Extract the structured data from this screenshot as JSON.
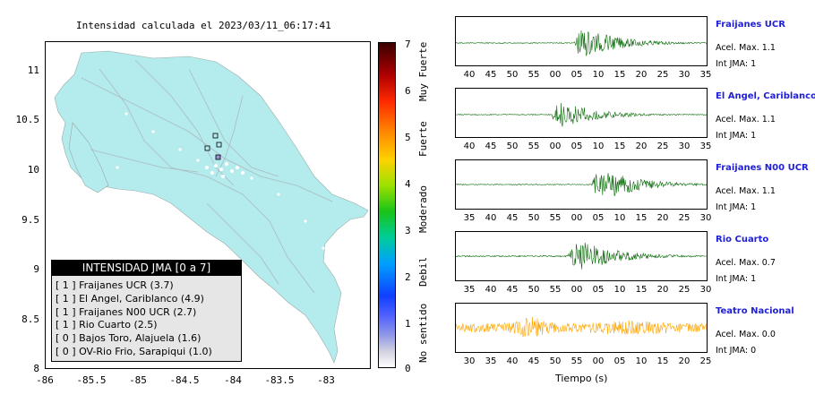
{
  "map": {
    "title": "Intensidad calculada el 2023/03/11_06:17:41",
    "yticks": [
      "11",
      "10.5",
      "10",
      "9.5",
      "9",
      "8.5",
      "8"
    ],
    "xticks": [
      "-86",
      "-85.5",
      "-85",
      "-84.5",
      "-84",
      "-83.5",
      "-83"
    ],
    "land_color": "#b4ebed"
  },
  "colorbar": {
    "numbers": [
      "7",
      "6",
      "5",
      "4",
      "3",
      "2",
      "1",
      "0"
    ],
    "labels": [
      "Muy Fuerte",
      "Fuerte",
      "Moderado",
      "Debil",
      "No sentido"
    ]
  },
  "legend": {
    "title": "INTENSIDAD JMA [0 a 7]",
    "rows": [
      "[ 1 ]  Fraijanes UCR (3.7)",
      "[ 1 ]  El Angel, Cariblanco (4.9)",
      "[ 1 ]  Fraijanes N00 UCR (2.7)",
      "[ 1 ]  Rio Cuarto (2.5)",
      "[ 0 ]  Bajos Toro, Alajuela (1.6)",
      "[ 0 ]  OV-Rio Frio, Sarapiqui (1.0)"
    ]
  },
  "stations": [
    {
      "name": "Fraijanes UCR",
      "acel": "Acel. Max. 1.1",
      "int": "Int JMA: 1",
      "ticks": [
        "40",
        "45",
        "50",
        "55",
        "00",
        "05",
        "10",
        "15",
        "20",
        "25",
        "30",
        "35"
      ],
      "color": "#0a6b0a"
    },
    {
      "name": "El Angel, Cariblanco",
      "acel": "Acel. Max. 1.1",
      "int": "Int JMA: 1",
      "ticks": [
        "40",
        "45",
        "50",
        "55",
        "00",
        "05",
        "10",
        "15",
        "20",
        "25",
        "30",
        "35"
      ],
      "color": "#0a6b0a"
    },
    {
      "name": "Fraijanes N00 UCR",
      "acel": "Acel. Max. 1.1",
      "int": "Int JMA: 1",
      "ticks": [
        "35",
        "40",
        "45",
        "50",
        "55",
        "00",
        "05",
        "10",
        "15",
        "20",
        "25",
        "30"
      ],
      "color": "#0a6b0a"
    },
    {
      "name": "Rio Cuarto",
      "acel": "Acel. Max. 0.7",
      "int": "Int JMA: 1",
      "ticks": [
        "35",
        "40",
        "45",
        "50",
        "55",
        "00",
        "05",
        "10",
        "15",
        "20",
        "25",
        "30"
      ],
      "color": "#0a6b0a"
    },
    {
      "name": "Teatro Nacional",
      "acel": "Acel. Max. 0.0",
      "int": "Int JMA: 0",
      "ticks": [
        "30",
        "35",
        "40",
        "45",
        "50",
        "55",
        "00",
        "05",
        "10",
        "15",
        "20",
        "25"
      ],
      "color": "#ffa500"
    }
  ],
  "xlabel": "Tiempo (s)",
  "chart_data": [
    {
      "type": "map",
      "title": "Intensidad calculada el 2023/03/11_06:17:41",
      "xlim": [
        -86,
        -82.5
      ],
      "ylim": [
        8,
        11.3
      ],
      "stations_shown": 4
    },
    {
      "type": "line",
      "title": "Fraijanes UCR",
      "ylabel": "",
      "xlabel": "Tiempo (s)"
    }
  ]
}
